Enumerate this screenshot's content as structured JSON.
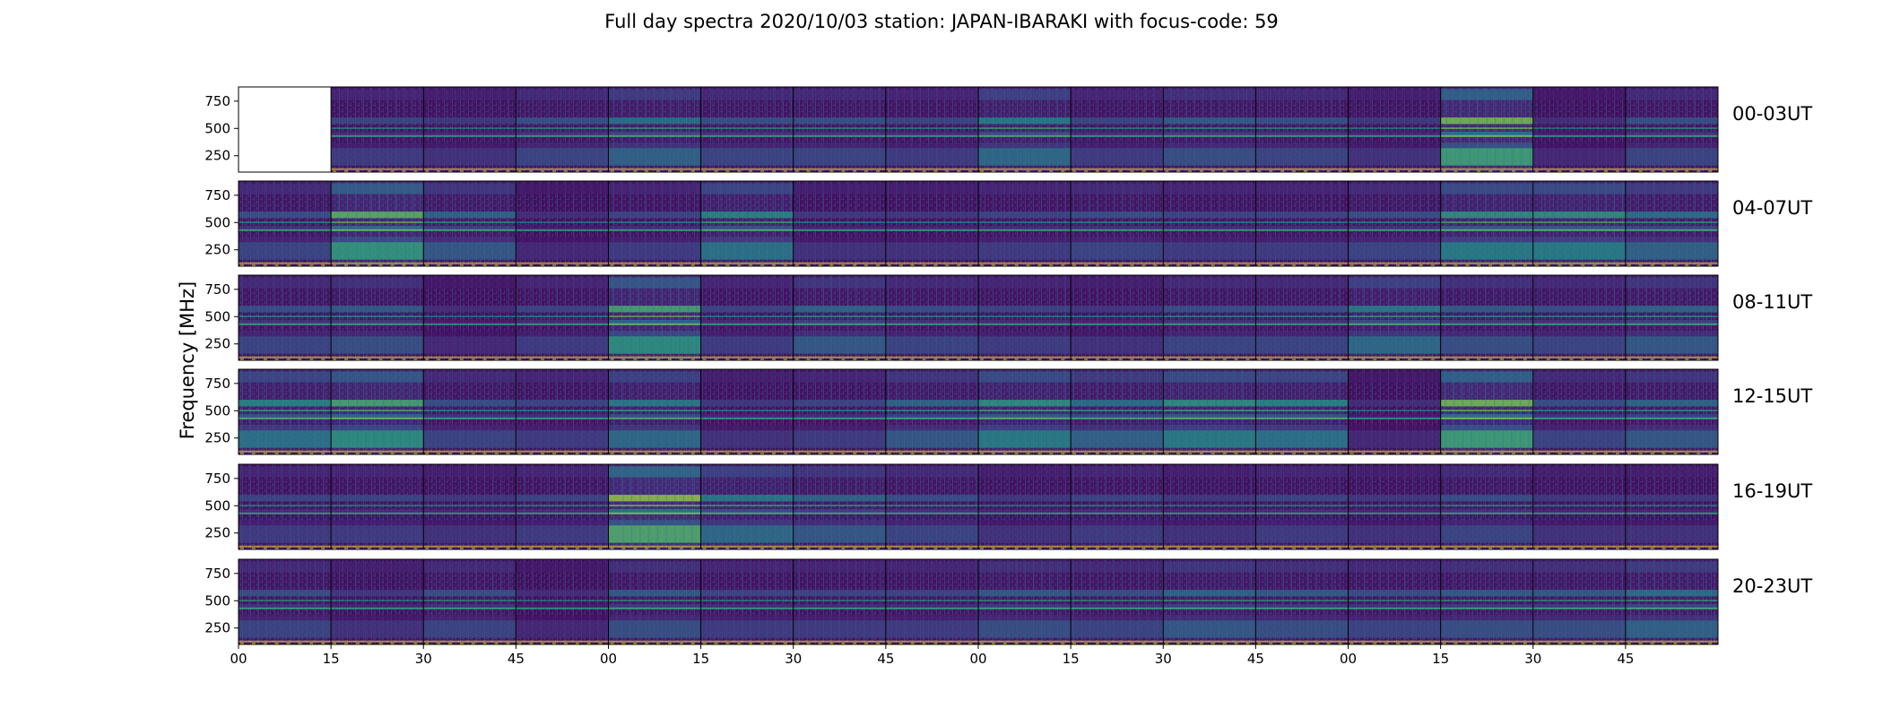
{
  "chart_data": {
    "type": "heatmap",
    "title": "Full day spectra 2020/10/03 station: JAPAN-IBARAKI with focus-code: 59",
    "ylabel": "Frequency [MHz]",
    "xlabel": "",
    "ylim": [
      100,
      880
    ],
    "yticks": [
      250,
      500,
      750
    ],
    "x_tick_labels": [
      "00",
      "15",
      "30",
      "45",
      "00",
      "15",
      "30",
      "45",
      "00",
      "15",
      "30",
      "45",
      "00",
      "15",
      "30",
      "45"
    ],
    "grid": false,
    "colormap": "viridis",
    "colormap_stops": [
      "#440154",
      "#482878",
      "#3e4989",
      "#31688e",
      "#26828e",
      "#1f9e89",
      "#35b779",
      "#6ece58",
      "#b5de2b",
      "#fde725"
    ],
    "rows": [
      {
        "label": "00-03UT",
        "intensity": [
          null,
          0.25,
          0.2,
          0.3,
          0.45,
          0.3,
          0.3,
          0.25,
          0.5,
          0.25,
          0.35,
          0.3,
          0.2,
          0.8,
          0.15,
          0.3
        ]
      },
      {
        "label": "04-07UT",
        "intensity": [
          0.3,
          0.75,
          0.4,
          0.15,
          0.25,
          0.55,
          0.2,
          0.2,
          0.25,
          0.3,
          0.25,
          0.25,
          0.3,
          0.6,
          0.6,
          0.45
        ]
      },
      {
        "label": "08-11UT",
        "intensity": [
          0.3,
          0.35,
          0.15,
          0.25,
          0.7,
          0.25,
          0.4,
          0.3,
          0.25,
          0.2,
          0.3,
          0.3,
          0.5,
          0.35,
          0.3,
          0.4
        ]
      },
      {
        "label": "12-15UT",
        "intensity": [
          0.55,
          0.7,
          0.3,
          0.25,
          0.5,
          0.2,
          0.25,
          0.4,
          0.6,
          0.45,
          0.6,
          0.55,
          0.15,
          0.8,
          0.3,
          0.4
        ]
      },
      {
        "label": "16-19UT",
        "intensity": [
          0.25,
          0.25,
          0.2,
          0.25,
          0.85,
          0.5,
          0.4,
          0.3,
          0.2,
          0.25,
          0.2,
          0.25,
          0.2,
          0.3,
          0.2,
          0.2
        ]
      },
      {
        "label": "20-23UT",
        "intensity": [
          0.3,
          0.2,
          0.3,
          0.15,
          0.35,
          0.25,
          0.25,
          0.25,
          0.35,
          0.3,
          0.4,
          0.35,
          0.3,
          0.35,
          0.35,
          0.45
        ]
      }
    ]
  }
}
